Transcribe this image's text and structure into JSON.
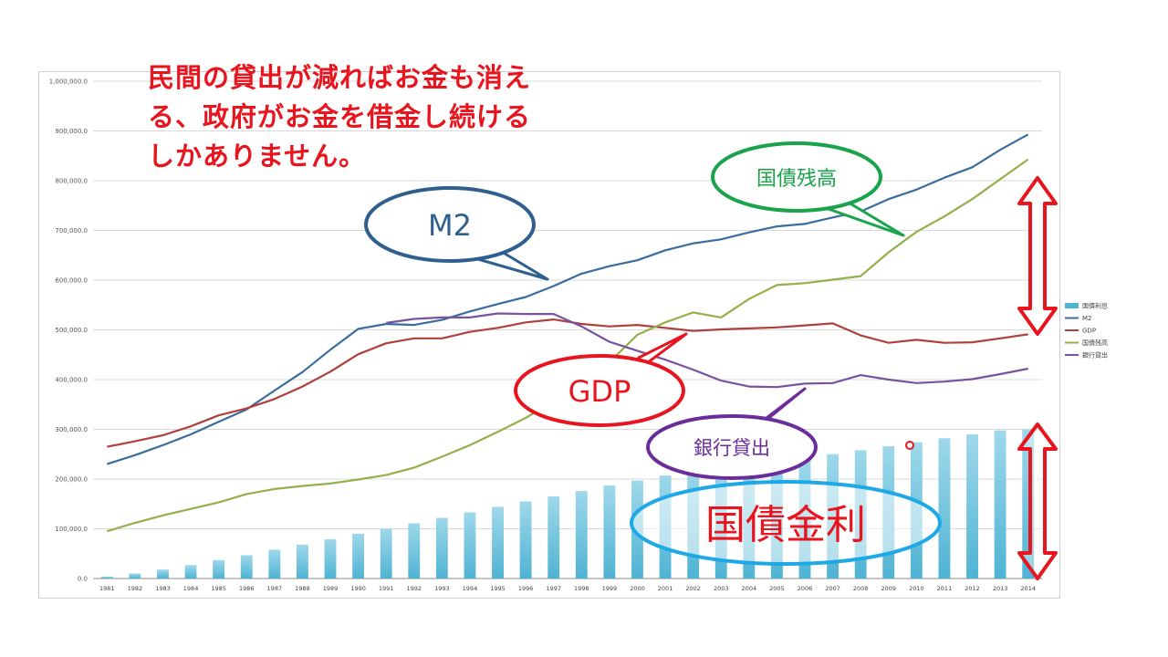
{
  "headline": {
    "lines": [
      "民間の貸出が減ればお金も消え",
      "る、政府がお金を借金し続ける",
      "しかありません。"
    ]
  },
  "callouts": {
    "m2": "M2",
    "kokusai_zandaka": "国債残高",
    "gdp": "GDP",
    "ginko_kashidashi": "銀行貸出",
    "kokusai_kinri": "国債金利"
  },
  "colors": {
    "bars": "#4fb3d3",
    "m2": "#3a6d9e",
    "gdp": "#b0403c",
    "kokusai_zandaka": "#93b04a",
    "ginko_kashidashi": "#7a53a0",
    "headline": "#e8141e",
    "callout_m2": "#2f5f8f",
    "callout_green": "#19a34a",
    "callout_red": "#e8141e",
    "callout_purple": "#6a2d9a",
    "callout_cyan": "#1ea9e6",
    "arrow": "#e8141e"
  },
  "chart_data": {
    "type": "bar",
    "categories": [
      "1981",
      "1982",
      "1983",
      "1984",
      "1985",
      "1986",
      "1987",
      "1988",
      "1989",
      "1990",
      "1991",
      "1992",
      "1993",
      "1994",
      "1995",
      "1996",
      "1997",
      "1998",
      "1999",
      "2000",
      "2001",
      "2002",
      "2003",
      "2004",
      "2005",
      "2006",
      "2007",
      "2008",
      "2009",
      "2010",
      "2011",
      "2012",
      "2013",
      "2014"
    ],
    "ylim": [
      0,
      1000000
    ],
    "yticks": [
      "0.0",
      "100,000.0",
      "200,000.0",
      "300,000.0",
      "400,000.0",
      "500,000.0",
      "600,000.0",
      "700,000.0",
      "800,000.0",
      "900,000.0",
      "1,000,000.0"
    ],
    "grid": true,
    "legend_position": "right",
    "legend": [
      "国債利息",
      "M2",
      "GDP",
      "国債残高",
      "銀行貸出"
    ],
    "series": [
      {
        "name": "国債利息",
        "type": "bar",
        "values": [
          4000,
          10000,
          18000,
          27000,
          37000,
          47000,
          58000,
          68000,
          79000,
          90000,
          100000,
          111000,
          122000,
          133000,
          144000,
          155000,
          165000,
          176000,
          187000,
          197000,
          207000,
          216000,
          222000,
          229000,
          235000,
          242000,
          250000,
          258000,
          266000,
          274000,
          282000,
          290000,
          298000,
          300000
        ]
      },
      {
        "name": "M2",
        "type": "line",
        "values": [
          230000,
          248000,
          268000,
          290000,
          315000,
          340000,
          378000,
          415000,
          460000,
          502000,
          512000,
          510000,
          520000,
          537000,
          552000,
          566000,
          588000,
          613000,
          628000,
          640000,
          660000,
          674000,
          682000,
          696000,
          708000,
          713000,
          726000,
          738000,
          763000,
          782000,
          806000,
          827000,
          862000,
          893000
        ]
      },
      {
        "name": "GDP",
        "type": "line",
        "values": [
          265000,
          276000,
          288000,
          306000,
          328000,
          342000,
          361000,
          386000,
          416000,
          451000,
          473000,
          483000,
          483000,
          496000,
          504000,
          515000,
          521000,
          512000,
          507000,
          510000,
          504000,
          498000,
          501000,
          503000,
          505000,
          509000,
          513000,
          489000,
          474000,
          480000,
          474000,
          475000,
          483000,
          491000
        ]
      },
      {
        "name": "国債残高",
        "type": "line",
        "values": [
          95000,
          112000,
          127000,
          140000,
          153000,
          170000,
          180000,
          186000,
          191000,
          199000,
          208000,
          223000,
          245000,
          268000,
          295000,
          323000,
          356000,
          392000,
          435000,
          490000,
          515000,
          535000,
          525000,
          562000,
          590000,
          594000,
          601000,
          608000,
          656000,
          697000,
          728000,
          763000,
          803000,
          843000
        ]
      },
      {
        "name": "銀行貸出",
        "type": "line",
        "values": [
          null,
          null,
          null,
          null,
          null,
          null,
          null,
          null,
          null,
          null,
          514000,
          522000,
          525000,
          525000,
          533000,
          532000,
          532000,
          507000,
          476000,
          458000,
          440000,
          420000,
          398000,
          386000,
          385000,
          392000,
          393000,
          409000,
          400000,
          393000,
          396000,
          401000,
          411000,
          422000
        ]
      }
    ]
  }
}
